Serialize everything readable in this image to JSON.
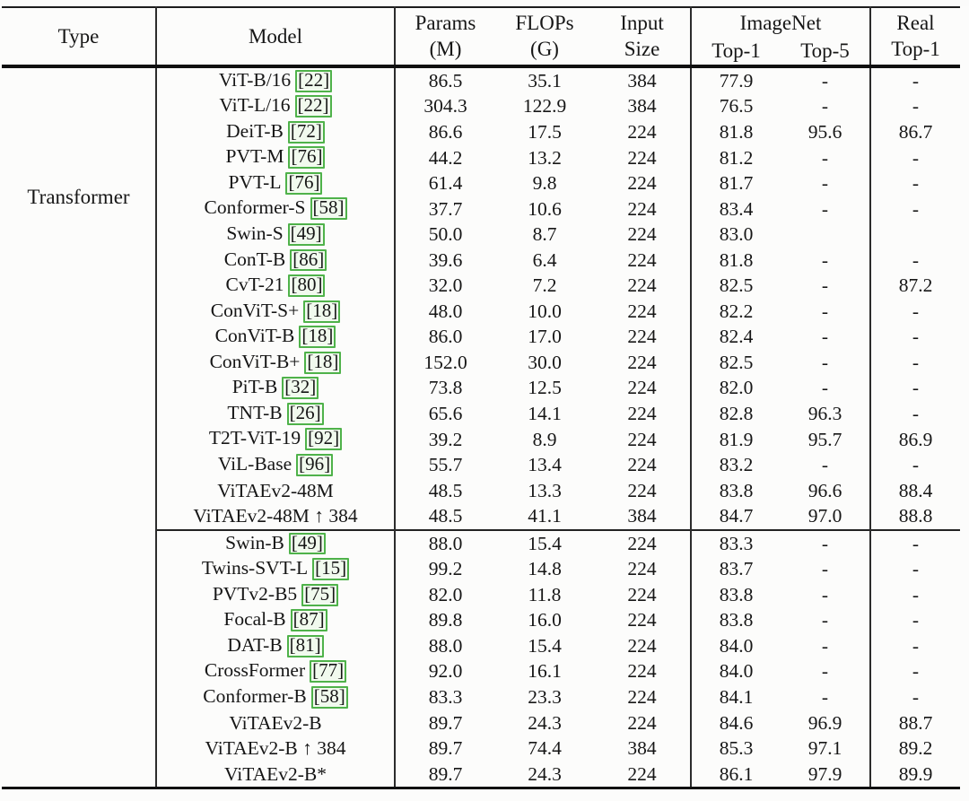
{
  "colors": {
    "citation_border": "#4fb24a",
    "citation_background": "#f1faee",
    "text": "#161616"
  },
  "table": {
    "type_label": "Transformer",
    "header": {
      "type": "Type",
      "model": "Model",
      "params1": "Params",
      "params2": "(M)",
      "flops1": "FLOPs",
      "flops2": "(G)",
      "input1": "Input",
      "input2": "Size",
      "imagenet": "ImageNet",
      "top1": "Top-1",
      "top5": "Top-5",
      "real1": "Real",
      "real2": "Top-1"
    },
    "groups": [
      {
        "rows": [
          {
            "model": "ViT-B/16",
            "cite": "22",
            "params": "86.5",
            "flops": "35.1",
            "input": "384",
            "top1": "77.9",
            "top5": "-",
            "real": "-"
          },
          {
            "model": "ViT-L/16",
            "cite": "22",
            "params": "304.3",
            "flops": "122.9",
            "input": "384",
            "top1": "76.5",
            "top5": "-",
            "real": "-"
          },
          {
            "model": "DeiT-B",
            "cite": "72",
            "params": "86.6",
            "flops": "17.5",
            "input": "224",
            "top1": "81.8",
            "top5": "95.6",
            "real": "86.7"
          },
          {
            "model": "PVT-M",
            "cite": "76",
            "params": "44.2",
            "flops": "13.2",
            "input": "224",
            "top1": "81.2",
            "top5": "-",
            "real": "-"
          },
          {
            "model": "PVT-L",
            "cite": "76",
            "params": "61.4",
            "flops": "9.8",
            "input": "224",
            "top1": "81.7",
            "top5": "-",
            "real": "-"
          },
          {
            "model": "Conformer-S",
            "cite": "58",
            "params": "37.7",
            "flops": "10.6",
            "input": "224",
            "top1": "83.4",
            "top5": "-",
            "real": "-"
          },
          {
            "model": "Swin-S",
            "cite": "49",
            "params": "50.0",
            "flops": "8.7",
            "input": "224",
            "top1": "83.0",
            "top5": "",
            "real": ""
          },
          {
            "model": "ConT-B",
            "cite": "86",
            "params": "39.6",
            "flops": "6.4",
            "input": "224",
            "top1": "81.8",
            "top5": "-",
            "real": "-"
          },
          {
            "model": "CvT-21",
            "cite": "80",
            "params": "32.0",
            "flops": "7.2",
            "input": "224",
            "top1": "82.5",
            "top5": "-",
            "real": "87.2"
          },
          {
            "model": "ConViT-S+",
            "cite": "18",
            "params": "48.0",
            "flops": "10.0",
            "input": "224",
            "top1": "82.2",
            "top5": "-",
            "real": "-"
          },
          {
            "model": "ConViT-B",
            "cite": "18",
            "params": "86.0",
            "flops": "17.0",
            "input": "224",
            "top1": "82.4",
            "top5": "-",
            "real": "-"
          },
          {
            "model": "ConViT-B+",
            "cite": "18",
            "params": "152.0",
            "flops": "30.0",
            "input": "224",
            "top1": "82.5",
            "top5": "-",
            "real": "-"
          },
          {
            "model": "PiT-B",
            "cite": "32",
            "params": "73.8",
            "flops": "12.5",
            "input": "224",
            "top1": "82.0",
            "top5": "-",
            "real": "-"
          },
          {
            "model": "TNT-B",
            "cite": "26",
            "params": "65.6",
            "flops": "14.1",
            "input": "224",
            "top1": "82.8",
            "top5": "96.3",
            "real": "-"
          },
          {
            "model": "T2T-ViT-19",
            "cite": "92",
            "params": "39.2",
            "flops": "8.9",
            "input": "224",
            "top1": "81.9",
            "top5": "95.7",
            "real": "86.9"
          },
          {
            "model": "ViL-Base",
            "cite": "96",
            "params": "55.7",
            "flops": "13.4",
            "input": "224",
            "top1": "83.2",
            "top5": "-",
            "real": "-"
          },
          {
            "model": "ViTAEv2-48M",
            "cite": null,
            "params": "48.5",
            "flops": "13.3",
            "input": "224",
            "top1": "83.8",
            "top5": "96.6",
            "real": "88.4"
          },
          {
            "model": "ViTAEv2-48M ↑ 384",
            "cite": null,
            "params": "48.5",
            "flops": "41.1",
            "input": "384",
            "top1": "84.7",
            "top5": "97.0",
            "real": "88.8"
          }
        ]
      },
      {
        "rows": [
          {
            "model": "Swin-B",
            "cite": "49",
            "params": "88.0",
            "flops": "15.4",
            "input": "224",
            "top1": "83.3",
            "top5": "-",
            "real": "-"
          },
          {
            "model": "Twins-SVT-L",
            "cite": "15",
            "params": "99.2",
            "flops": "14.8",
            "input": "224",
            "top1": "83.7",
            "top5": "-",
            "real": "-"
          },
          {
            "model": "PVTv2-B5",
            "cite": "75",
            "params": "82.0",
            "flops": "11.8",
            "input": "224",
            "top1": "83.8",
            "top5": "-",
            "real": "-"
          },
          {
            "model": "Focal-B",
            "cite": "87",
            "params": "89.8",
            "flops": "16.0",
            "input": "224",
            "top1": "83.8",
            "top5": "-",
            "real": "-"
          },
          {
            "model": "DAT-B",
            "cite": "81",
            "params": "88.0",
            "flops": "15.4",
            "input": "224",
            "top1": "84.0",
            "top5": "-",
            "real": "-"
          },
          {
            "model": "CrossFormer",
            "cite": "77",
            "params": "92.0",
            "flops": "16.1",
            "input": "224",
            "top1": "84.0",
            "top5": "-",
            "real": "-"
          },
          {
            "model": "Conformer-B",
            "cite": "58",
            "params": "83.3",
            "flops": "23.3",
            "input": "224",
            "top1": "84.1",
            "top5": "-",
            "real": "-"
          },
          {
            "model": "ViTAEv2-B",
            "cite": null,
            "params": "89.7",
            "flops": "24.3",
            "input": "224",
            "top1": "84.6",
            "top5": "96.9",
            "real": "88.7"
          },
          {
            "model": "ViTAEv2-B ↑ 384",
            "cite": null,
            "params": "89.7",
            "flops": "74.4",
            "input": "384",
            "top1": "85.3",
            "top5": "97.1",
            "real": "89.2"
          },
          {
            "model": "ViTAEv2-B*",
            "cite": null,
            "params": "89.7",
            "flops": "24.3",
            "input": "224",
            "top1": "86.1",
            "top5": "97.9",
            "real": "89.9"
          }
        ]
      }
    ]
  }
}
